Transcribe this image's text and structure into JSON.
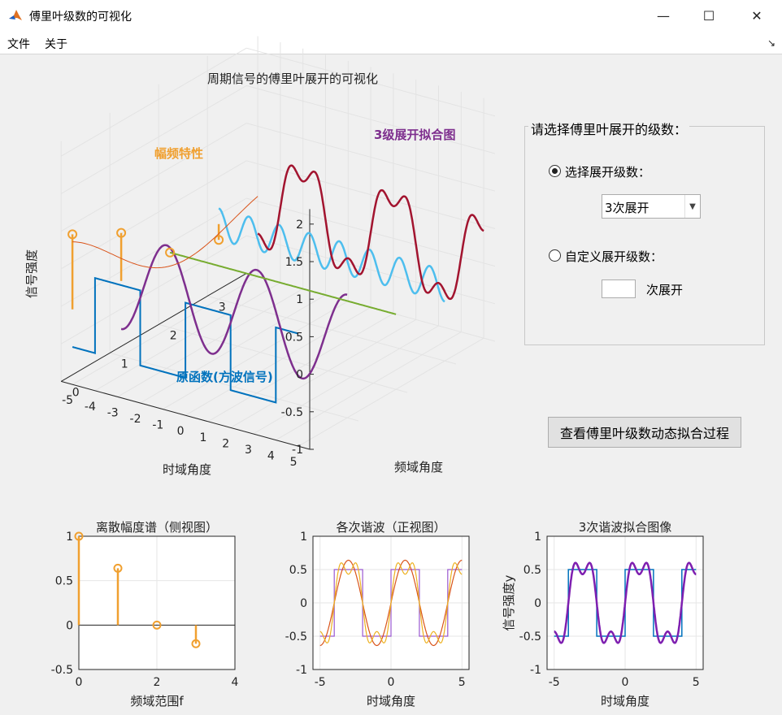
{
  "window": {
    "title": "傅里叶级数的可视化",
    "minimize": "—",
    "maximize": "☐",
    "close": "✕"
  },
  "menu": {
    "file": "文件",
    "about": "关于",
    "dock": "↘"
  },
  "panel": {
    "title": "请选择傅里叶展开的级数：",
    "option_select": "选择展开级数：",
    "option_custom": "自定义展开级数：",
    "selected_order": "3次展开",
    "custom_value": "",
    "custom_suffix": "次展开"
  },
  "animate_button": "查看傅里叶级数动态拟合过程",
  "colors": {
    "square": "#0072bd",
    "stem": "#f0a030",
    "fit": "#7e2f8e",
    "h1": "#7e2f8e",
    "h2": "#4dbeee",
    "h3": "#a2142f",
    "dc": "#77ac30",
    "envelope": "#d95319"
  },
  "main3d": {
    "title": "周期信号的傅里叶展开的可视化",
    "zlabel": "信号强度",
    "xlabel": "时域角度",
    "ylabel": "频域角度",
    "z_ticks": [
      "2",
      "1.5",
      "1",
      "0.5",
      "0",
      "-0.5",
      "-1"
    ],
    "x_ticks": [
      "5",
      "4",
      "3",
      "2",
      "1",
      "0",
      "-1",
      "-2",
      "-3",
      "-4",
      "-5"
    ],
    "y_ticks": [
      "0",
      "1",
      "2",
      "3"
    ],
    "label_amp": "幅频特性",
    "label_fit": "3级展开拟合图",
    "label_orig": "原函数(方波信号)"
  },
  "chart_data": [
    {
      "type": "bar",
      "title": "离散幅度谱（侧视图）",
      "xlabel": "频域范围f",
      "ylabel": "",
      "xlim": [
        0,
        4
      ],
      "ylim": [
        -0.5,
        1
      ],
      "x": [
        0,
        1,
        2,
        3
      ],
      "values": [
        1.0,
        0.64,
        0.0,
        -0.21
      ],
      "x_ticks": [
        "0",
        "2",
        "4"
      ],
      "y_ticks": [
        "1",
        "0.5",
        "0",
        "-0.5"
      ],
      "grid": true
    },
    {
      "type": "line",
      "title": "各次谐波（正视图）",
      "xlabel": "时域角度",
      "ylabel": "",
      "xlim": [
        -5.5,
        5.5
      ],
      "ylim": [
        -1,
        1
      ],
      "x_ticks": [
        "-5",
        "0",
        "5"
      ],
      "y_ticks": [
        "1",
        "0.5",
        "0",
        "-0.5",
        "-1"
      ],
      "series_count": 3,
      "grid": true
    },
    {
      "type": "line",
      "title": "3次谐波拟合图像",
      "xlabel": "时域角度",
      "ylabel": "信号强度y",
      "xlim": [
        -5.5,
        5.5
      ],
      "ylim": [
        -1,
        1
      ],
      "x_ticks": [
        "-5",
        "0",
        "5"
      ],
      "y_ticks": [
        "1",
        "0.5",
        "0",
        "-0.5",
        "-1"
      ],
      "grid": true
    }
  ]
}
